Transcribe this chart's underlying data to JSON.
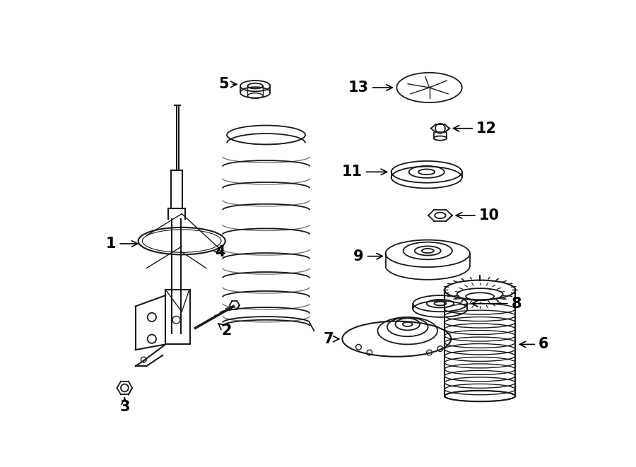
{
  "bg_color": "#ffffff",
  "line_color": "#1a1a1a",
  "figsize": [
    9.0,
    6.61
  ],
  "dpi": 100
}
